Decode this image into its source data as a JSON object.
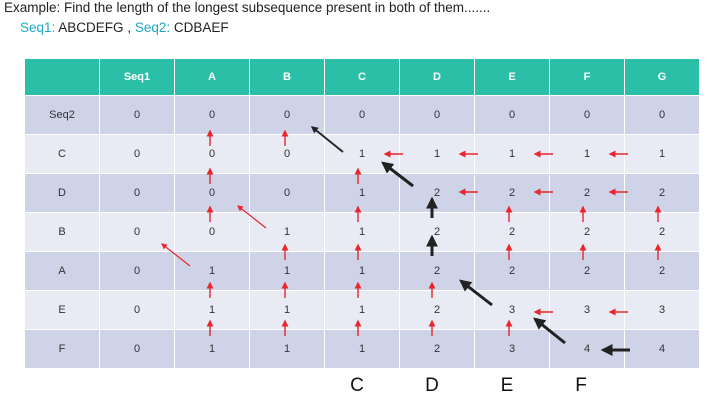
{
  "heading": "Example:  Find the length of the longest subsequence present in both of them.......",
  "seq1_label": "Seq1:",
  "seq1_value": "ABCDEFG",
  "separator": ",",
  "seq2_label": "Seq2:",
  "seq2_value": "CDBAEF",
  "table": {
    "corner": "",
    "columns": [
      "Seq1",
      "A",
      "B",
      "C",
      "D",
      "E",
      "F",
      "G"
    ],
    "rows": [
      {
        "label": "Seq2",
        "cells": [
          "0",
          "0",
          "0",
          "0",
          "0",
          "0",
          "0",
          "0"
        ]
      },
      {
        "label": "C",
        "cells": [
          "0",
          "0",
          "0",
          "1",
          "1",
          "1",
          "1",
          "1"
        ]
      },
      {
        "label": "D",
        "cells": [
          "0",
          "0",
          "0",
          "1",
          "2",
          "2",
          "2",
          "2"
        ]
      },
      {
        "label": "B",
        "cells": [
          "0",
          "0",
          "1",
          "1",
          "2",
          "2",
          "2",
          "2"
        ]
      },
      {
        "label": "A",
        "cells": [
          "0",
          "1",
          "1",
          "1",
          "2",
          "2",
          "2",
          "2"
        ]
      },
      {
        "label": "E",
        "cells": [
          "0",
          "1",
          "1",
          "1",
          "2",
          "3",
          "3",
          "3"
        ]
      },
      {
        "label": "F",
        "cells": [
          "0",
          "1",
          "1",
          "1",
          "2",
          "3",
          "4",
          "4"
        ]
      }
    ]
  },
  "result_letters": [
    "C",
    "D",
    "E",
    "F"
  ],
  "colors": {
    "header": "#2bbfa7",
    "row_dark": "#cfd3e8",
    "row_light": "#e8eaf4",
    "arrow_red": "#e8262b",
    "arrow_black": "#222222",
    "seq_label": "#1fa7c9"
  }
}
